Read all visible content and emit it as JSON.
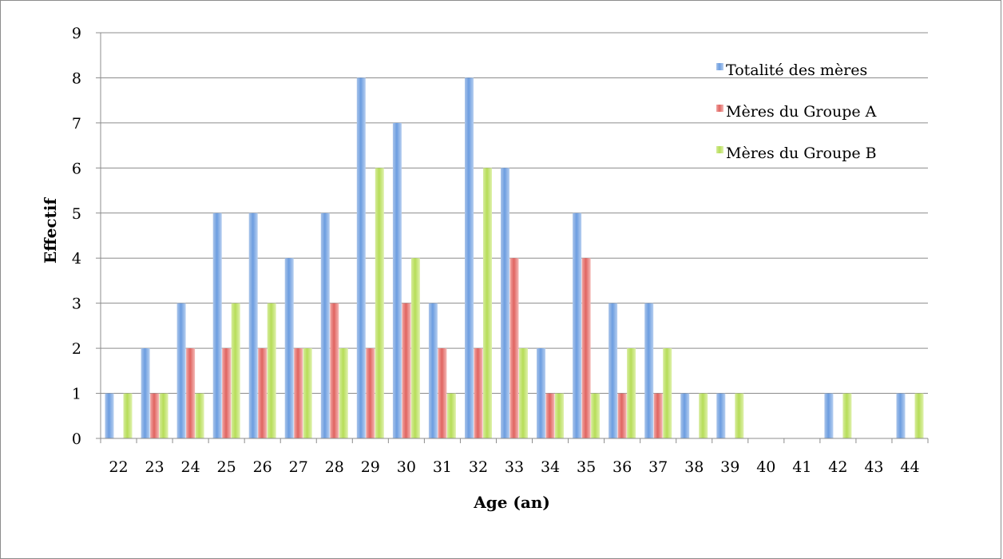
{
  "chart_data": {
    "type": "bar",
    "xlabel": "Age (an)",
    "ylabel": "Effectif",
    "ylim": [
      0,
      9
    ],
    "yticks": [
      0,
      1,
      2,
      3,
      4,
      5,
      6,
      7,
      8,
      9
    ],
    "grid": true,
    "legend_position": "top-right",
    "categories": [
      "22",
      "23",
      "24",
      "25",
      "26",
      "27",
      "28",
      "29",
      "30",
      "31",
      "32",
      "33",
      "34",
      "35",
      "36",
      "37",
      "38",
      "39",
      "40",
      "41",
      "42",
      "43",
      "44"
    ],
    "series": [
      {
        "name": "Totalité des mères",
        "color": "#4f81bd",
        "values": [
          1,
          2,
          3,
          5,
          5,
          4,
          5,
          8,
          7,
          3,
          8,
          6,
          2,
          5,
          3,
          3,
          1,
          1,
          0,
          0,
          1,
          0,
          1
        ]
      },
      {
        "name": "Mères du Groupe A",
        "color": "#c0504d",
        "values": [
          0,
          1,
          2,
          2,
          2,
          2,
          3,
          2,
          3,
          2,
          2,
          4,
          1,
          4,
          1,
          1,
          0,
          0,
          0,
          0,
          0,
          0,
          0
        ]
      },
      {
        "name": "Mères du Groupe B",
        "color": "#9bbb59",
        "values": [
          1,
          1,
          1,
          3,
          3,
          2,
          2,
          6,
          4,
          1,
          6,
          2,
          1,
          1,
          2,
          2,
          1,
          1,
          0,
          0,
          1,
          0,
          1
        ]
      }
    ]
  }
}
